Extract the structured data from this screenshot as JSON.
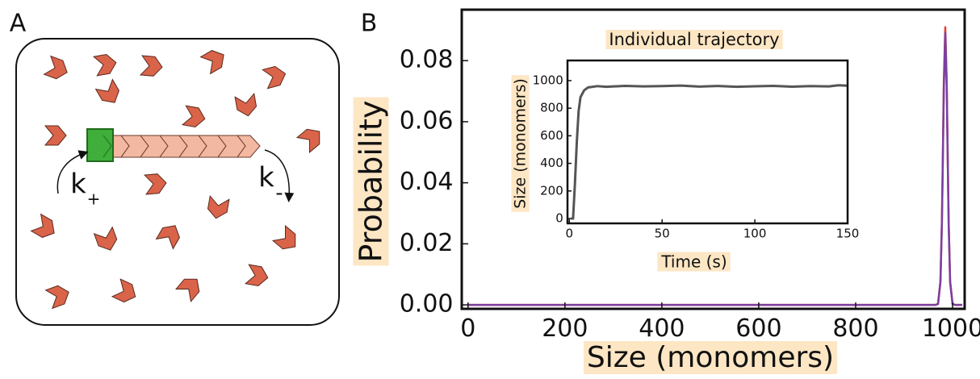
{
  "panels": [
    "A",
    "B"
  ],
  "diagram": {
    "k_plus": {
      "text": "k",
      "sub": "+"
    },
    "k_minus": {
      "text": "k",
      "sub": "-"
    }
  },
  "chart_data": [
    {
      "type": "line",
      "xlabel": "Size (monomers)",
      "ylabel": "Probability",
      "x": [
        0,
        200,
        400,
        600,
        800,
        950,
        965,
        970,
        975,
        978,
        980,
        982,
        985,
        988,
        990,
        992,
        995,
        1000,
        1005,
        1020
      ],
      "series": [
        {
          "color": "#e0403a",
          "values": [
            0,
            0,
            0,
            0,
            0,
            0,
            0,
            0.0003,
            0.0077,
            0.027,
            0.049,
            0.073,
            0.091,
            0.073,
            0.049,
            0.027,
            0.0077,
            0.0003,
            0,
            0
          ]
        },
        {
          "color": "#7b3fa0",
          "values": [
            0,
            0,
            0,
            0,
            0,
            0,
            0,
            0.0003,
            0.0075,
            0.0265,
            0.048,
            0.071,
            0.089,
            0.071,
            0.048,
            0.0265,
            0.0075,
            0.0003,
            0,
            0
          ]
        }
      ],
      "xlim": [
        -13,
        1025
      ],
      "ylim": [
        -0.0013,
        0.0967
      ],
      "xticks": [
        0,
        200,
        400,
        600,
        800,
        1000
      ],
      "yticks": [
        {
          "value": 0,
          "label": "0.00"
        },
        0.02,
        0.04,
        0.06,
        0.08
      ]
    },
    {
      "type": "line",
      "title": "Individual trajectory",
      "xlabel": "Time (s)",
      "ylabel": "Size (monomers)",
      "x": [
        1,
        2,
        3,
        4,
        5,
        6,
        8,
        10,
        15,
        20,
        30,
        40,
        50,
        60,
        70,
        80,
        90,
        100,
        110,
        120,
        130,
        140,
        145,
        150
      ],
      "series": [
        {
          "color": "#555555",
          "values": [
            0,
            0,
            250,
            550,
            780,
            880,
            930,
            950,
            960,
            955,
            962,
            958,
            960,
            964,
            957,
            961,
            955,
            959,
            962,
            956,
            960,
            958,
            966,
            963
          ]
        }
      ],
      "xlim": [
        -1,
        150
      ],
      "ylim": [
        -35,
        1146
      ],
      "xticks": [
        0,
        50,
        100,
        150
      ],
      "yticks": [
        0,
        200,
        400,
        600,
        800,
        1000
      ]
    }
  ]
}
